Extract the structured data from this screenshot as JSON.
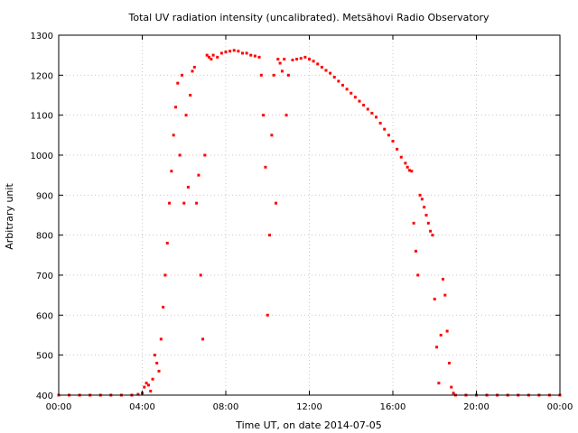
{
  "chart_data": {
    "type": "scatter",
    "title": "Total UV radiation intensity (uncalibrated). Metsähovi Radio Observatory",
    "xlabel": "Time UT, on date 2014-07-05",
    "ylabel": "Arbitrary unit",
    "xlim": [
      0,
      24
    ],
    "ylim": [
      400,
      1300
    ],
    "x_ticks": [
      0,
      4,
      8,
      12,
      16,
      20,
      24
    ],
    "x_tick_labels": [
      "00:00",
      "04:00",
      "08:00",
      "12:00",
      "16:00",
      "20:00",
      "00:00"
    ],
    "y_ticks": [
      400,
      500,
      600,
      700,
      800,
      900,
      1000,
      1100,
      1200,
      1300
    ],
    "y_tick_labels": [
      "400",
      "500",
      "600",
      "700",
      "800",
      "900",
      "1000",
      "1100",
      "1200",
      "1300"
    ],
    "grid": true,
    "legend": "none",
    "marker_color": "#ff0000",
    "series": [
      {
        "values": [
          [
            0.0,
            400
          ],
          [
            0.5,
            400
          ],
          [
            1.0,
            400
          ],
          [
            1.5,
            400
          ],
          [
            2.0,
            400
          ],
          [
            2.5,
            400
          ],
          [
            3.0,
            400
          ],
          [
            3.5,
            400
          ],
          [
            3.8,
            402
          ],
          [
            4.0,
            405
          ],
          [
            4.1,
            420
          ],
          [
            4.2,
            430
          ],
          [
            4.3,
            425
          ],
          [
            4.4,
            410
          ],
          [
            4.5,
            440
          ],
          [
            4.6,
            500
          ],
          [
            4.7,
            480
          ],
          [
            4.8,
            460
          ],
          [
            4.9,
            540
          ],
          [
            5.0,
            620
          ],
          [
            5.1,
            700
          ],
          [
            5.2,
            780
          ],
          [
            5.3,
            880
          ],
          [
            5.4,
            960
          ],
          [
            5.5,
            1050
          ],
          [
            5.6,
            1120
          ],
          [
            5.7,
            1180
          ],
          [
            5.8,
            1000
          ],
          [
            5.9,
            1200
          ],
          [
            6.0,
            880
          ],
          [
            6.1,
            1100
          ],
          [
            6.2,
            920
          ],
          [
            6.3,
            1150
          ],
          [
            6.4,
            1210
          ],
          [
            6.5,
            1220
          ],
          [
            6.6,
            880
          ],
          [
            6.7,
            950
          ],
          [
            6.8,
            700
          ],
          [
            6.9,
            540
          ],
          [
            7.0,
            1000
          ],
          [
            7.1,
            1250
          ],
          [
            7.2,
            1245
          ],
          [
            7.3,
            1240
          ],
          [
            7.4,
            1250
          ],
          [
            7.6,
            1245
          ],
          [
            7.8,
            1255
          ],
          [
            8.0,
            1258
          ],
          [
            8.2,
            1260
          ],
          [
            8.4,
            1262
          ],
          [
            8.6,
            1260
          ],
          [
            8.8,
            1255
          ],
          [
            9.0,
            1255
          ],
          [
            9.2,
            1250
          ],
          [
            9.4,
            1248
          ],
          [
            9.6,
            1245
          ],
          [
            9.7,
            1200
          ],
          [
            9.8,
            1100
          ],
          [
            9.9,
            970
          ],
          [
            10.0,
            600
          ],
          [
            10.1,
            800
          ],
          [
            10.2,
            1050
          ],
          [
            10.3,
            1200
          ],
          [
            10.4,
            880
          ],
          [
            10.5,
            1240
          ],
          [
            10.6,
            1230
          ],
          [
            10.7,
            1210
          ],
          [
            10.8,
            1240
          ],
          [
            10.9,
            1100
          ],
          [
            11.0,
            1200
          ],
          [
            11.2,
            1238
          ],
          [
            11.4,
            1240
          ],
          [
            11.6,
            1242
          ],
          [
            11.8,
            1245
          ],
          [
            12.0,
            1240
          ],
          [
            12.2,
            1235
          ],
          [
            12.4,
            1228
          ],
          [
            12.6,
            1220
          ],
          [
            12.8,
            1212
          ],
          [
            13.0,
            1205
          ],
          [
            13.2,
            1195
          ],
          [
            13.4,
            1185
          ],
          [
            13.6,
            1175
          ],
          [
            13.8,
            1165
          ],
          [
            14.0,
            1155
          ],
          [
            14.2,
            1145
          ],
          [
            14.4,
            1135
          ],
          [
            14.6,
            1125
          ],
          [
            14.8,
            1115
          ],
          [
            15.0,
            1105
          ],
          [
            15.2,
            1095
          ],
          [
            15.4,
            1080
          ],
          [
            15.6,
            1065
          ],
          [
            15.8,
            1050
          ],
          [
            16.0,
            1035
          ],
          [
            16.2,
            1015
          ],
          [
            16.4,
            995
          ],
          [
            16.6,
            980
          ],
          [
            16.7,
            970
          ],
          [
            16.8,
            962
          ],
          [
            16.9,
            960
          ],
          [
            17.0,
            830
          ],
          [
            17.1,
            760
          ],
          [
            17.2,
            700
          ],
          [
            17.3,
            900
          ],
          [
            17.4,
            890
          ],
          [
            17.5,
            870
          ],
          [
            17.6,
            850
          ],
          [
            17.7,
            830
          ],
          [
            17.8,
            810
          ],
          [
            17.9,
            800
          ],
          [
            18.0,
            640
          ],
          [
            18.1,
            520
          ],
          [
            18.2,
            430
          ],
          [
            18.3,
            550
          ],
          [
            18.4,
            690
          ],
          [
            18.5,
            650
          ],
          [
            18.6,
            560
          ],
          [
            18.7,
            480
          ],
          [
            18.8,
            420
          ],
          [
            18.9,
            405
          ],
          [
            19.0,
            400
          ],
          [
            19.5,
            400
          ],
          [
            20.0,
            400
          ],
          [
            20.5,
            400
          ],
          [
            21.0,
            400
          ],
          [
            21.5,
            400
          ],
          [
            22.0,
            400
          ],
          [
            22.5,
            400
          ],
          [
            23.0,
            400
          ],
          [
            23.5,
            400
          ],
          [
            24.0,
            400
          ]
        ]
      }
    ]
  }
}
